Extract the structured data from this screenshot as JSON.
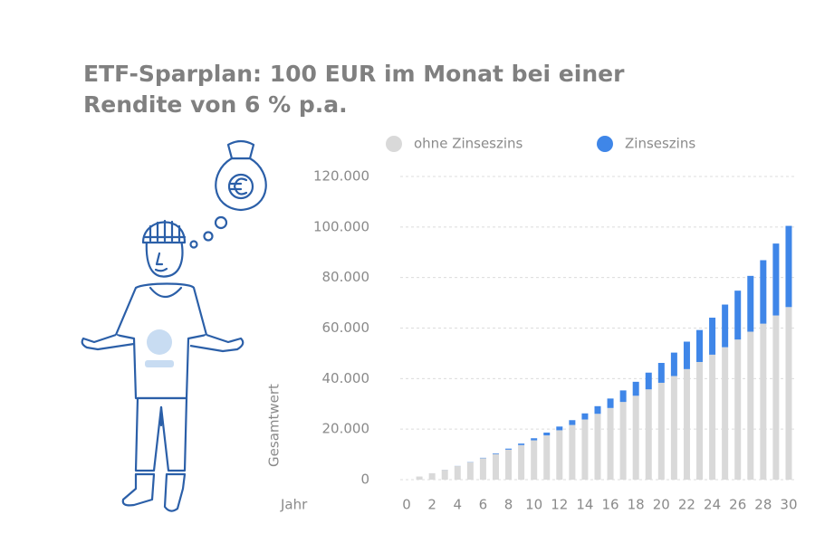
{
  "chart_data": {
    "type": "stacked-bar",
    "title": [
      "ETF-Sparplan: 100 EUR im Monat bei einer",
      "Rendite von 6 % p.a."
    ],
    "x_label": "Jahr",
    "y_label": "Gesamtwert",
    "x": [
      0,
      1,
      2,
      3,
      4,
      5,
      6,
      7,
      8,
      9,
      10,
      11,
      12,
      13,
      14,
      15,
      16,
      17,
      18,
      19,
      20,
      21,
      22,
      23,
      24,
      25,
      26,
      27,
      28,
      29,
      30
    ],
    "xlim": [
      -0.5,
      30.5
    ],
    "xticks": [
      0,
      2,
      4,
      6,
      8,
      10,
      12,
      14,
      16,
      18,
      20,
      22,
      24,
      26,
      28,
      30
    ],
    "ylim": [
      0,
      120000
    ],
    "yticks": [
      0,
      {
        "value": 20000,
        "label": "20.000"
      },
      {
        "value": 40000,
        "label": "40.000"
      },
      {
        "value": 60000,
        "label": "60.000"
      },
      {
        "value": 80000,
        "label": "80.000"
      },
      {
        "value": 100000,
        "label": "100.000"
      },
      {
        "value": 120000,
        "label": "120.000"
      }
    ],
    "grid": true,
    "legend": "top",
    "series": [
      {
        "name": "ohne Zinseszins",
        "color": "#d9d9d9",
        "values": [
          0,
          1233,
          2538,
          3915,
          5364,
          6885,
          8478,
          10143,
          11880,
          13689,
          15570,
          17523,
          19548,
          21645,
          23814,
          26055,
          28368,
          30753,
          33210,
          35739,
          38340,
          41013,
          43758,
          46575,
          49464,
          52425,
          55458,
          58563,
          61740,
          64989,
          68310
        ]
      },
      {
        "name": "Zinseszins",
        "color": "#3f86e8",
        "values": [
          0,
          1,
          5,
          19,
          46,
          92,
          163,
          264,
          403,
          585,
          818,
          1109,
          1467,
          1900,
          2416,
          3027,
          3741,
          4570,
          5525,
          6619,
          7864,
          9274,
          10864,
          12650,
          14647,
          16874,
          19349,
          22091,
          25122,
          28464,
          32142
        ]
      }
    ]
  }
}
